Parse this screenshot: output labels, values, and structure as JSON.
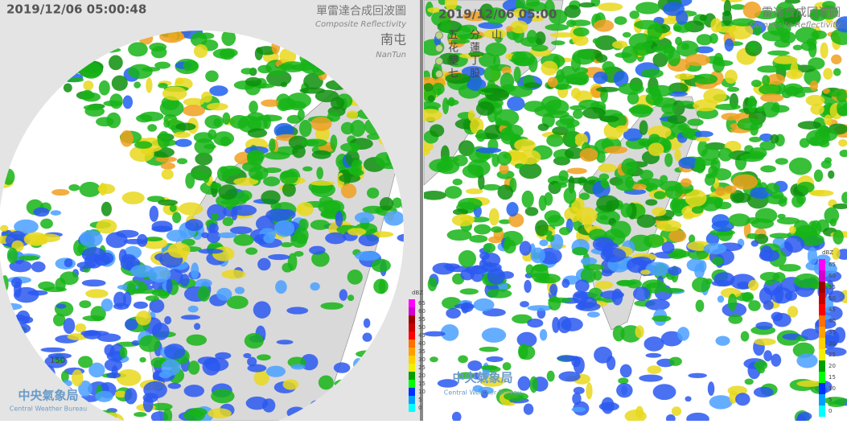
{
  "left": {
    "timestamp": "2019/12/06 05:00:48",
    "title_zh": "單雷達合成回波圖",
    "title_en": "Composite Reflectivity",
    "station_zh": "南屯",
    "station_en": "NanTun",
    "range_label": "150",
    "scale": {
      "unit": "dBZ",
      "labels": [
        "65",
        "60",
        "55",
        "50",
        "45",
        "40",
        "35",
        "30",
        "25",
        "20",
        "15",
        "10",
        "5",
        "0"
      ]
    },
    "logo": {
      "zh": "中央氣象局",
      "en": "Central Weather Bureau"
    }
  },
  "right": {
    "timestamp": "2019/12/06 05:00",
    "title_zh": "雷達合成回波圖",
    "title_en": "Composite Reflectivity",
    "stations": [
      "五分山",
      "花蓮",
      "墾丁",
      "七股"
    ],
    "scale": {
      "unit": "dBZ",
      "labels": [
        "65",
        "60",
        "55",
        "50",
        "45",
        "40",
        "35",
        "30",
        "25",
        "20",
        "15",
        "10",
        "5",
        "0"
      ]
    },
    "logo": {
      "zh": "中央氣象局",
      "en": "Central Weather Bureau"
    }
  }
}
